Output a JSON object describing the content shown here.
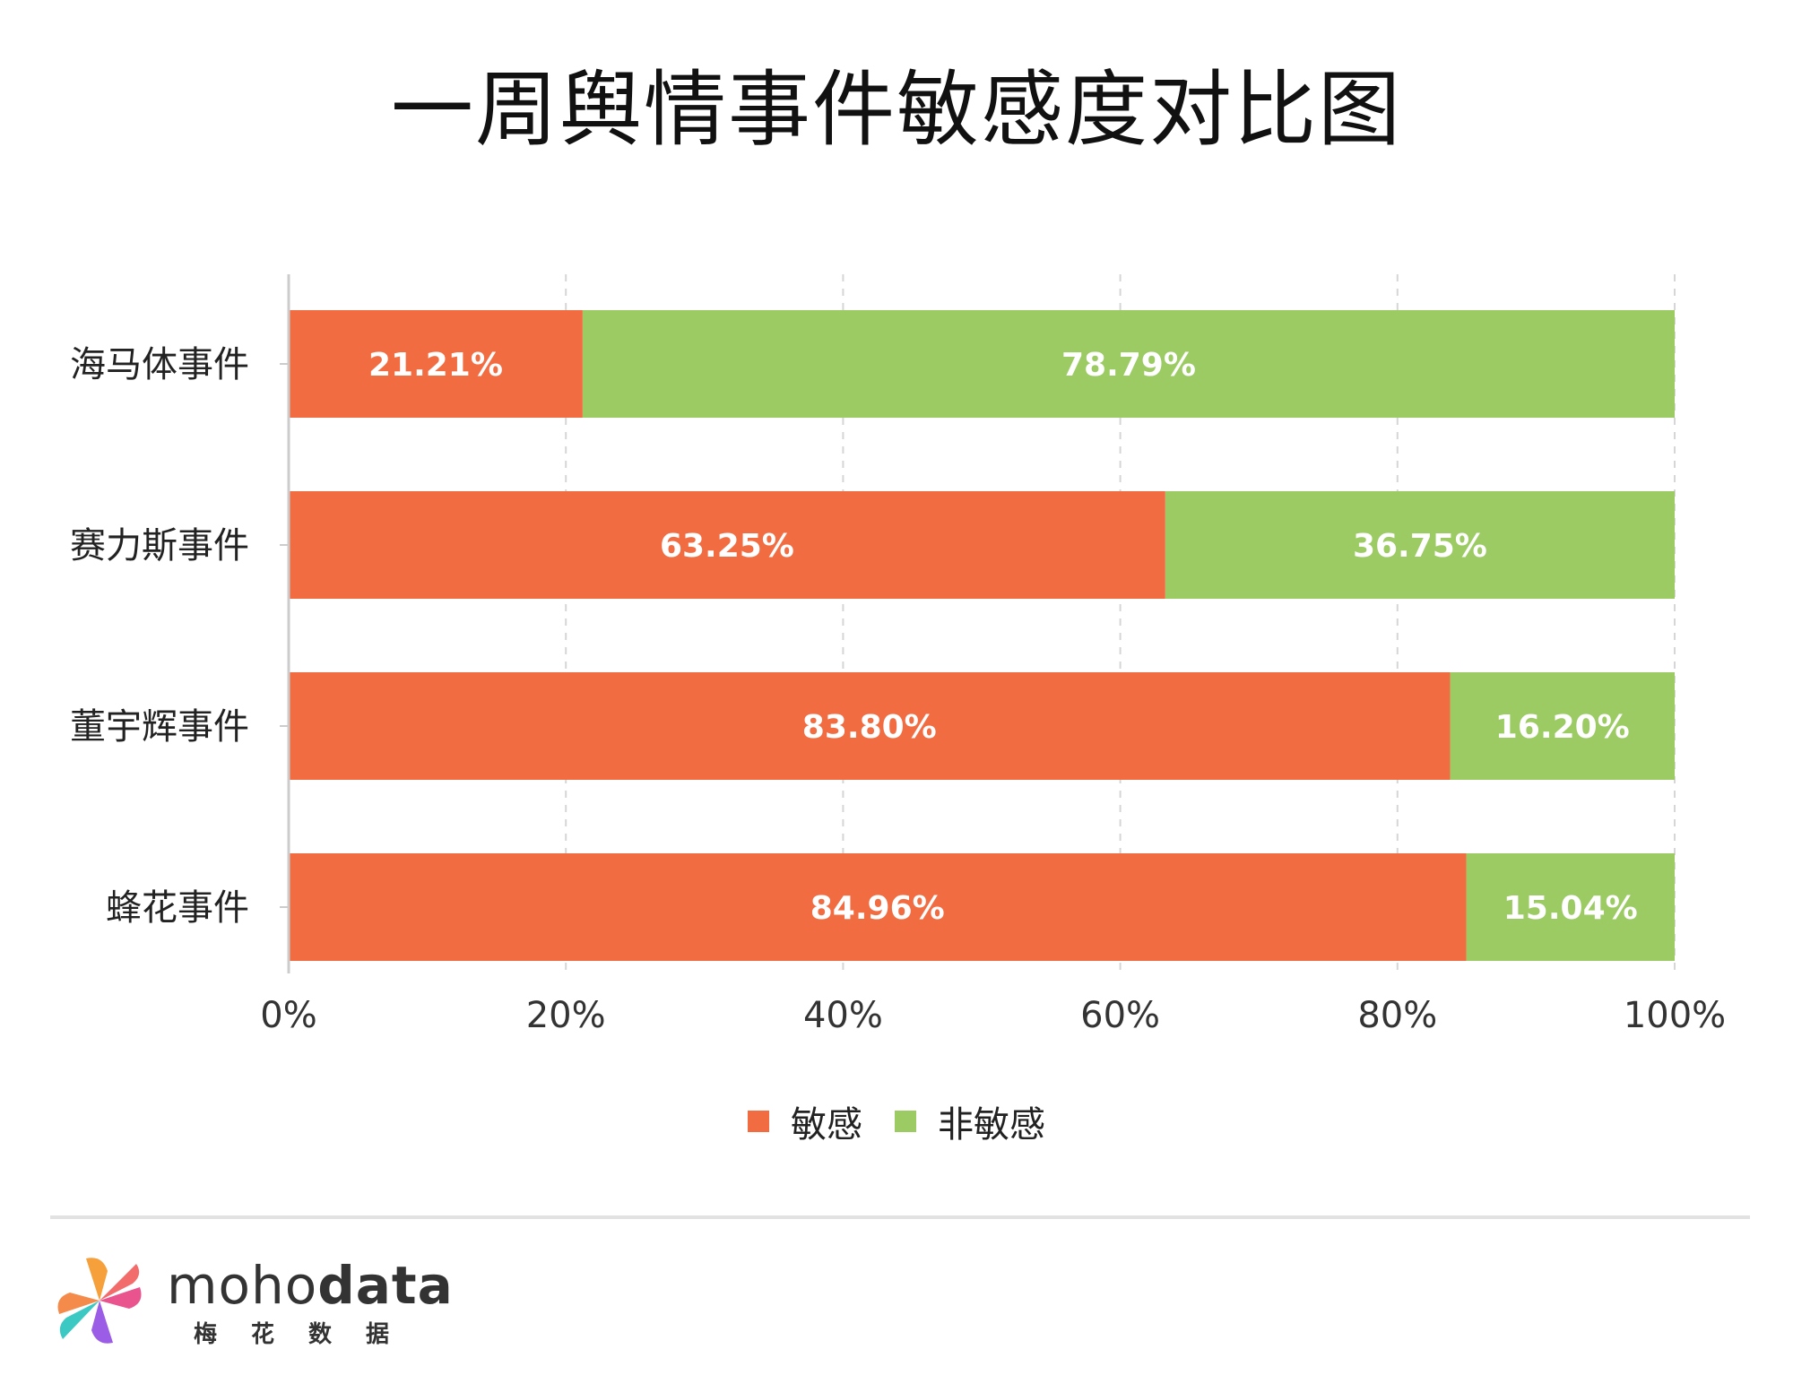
{
  "title": "一周舆情事件敏感度对比图",
  "chart_data": {
    "type": "bar",
    "orientation": "horizontal",
    "stacked": true,
    "title": "一周舆情事件敏感度对比图",
    "categories": [
      "海马体事件",
      "赛力斯事件",
      "董宇辉事件",
      "蜂花事件"
    ],
    "series": [
      {
        "name": "敏感",
        "color": "#F26C42",
        "values": [
          21.21,
          63.25,
          83.8,
          84.96
        ],
        "labels": [
          "21.21%",
          "63.25%",
          "83.80%",
          "84.96%"
        ]
      },
      {
        "name": "非敏感",
        "color": "#9CCB64",
        "values": [
          78.79,
          36.75,
          16.2,
          15.04
        ],
        "labels": [
          "78.79%",
          "36.75%",
          "16.20%",
          "15.04%"
        ]
      }
    ],
    "xlim": [
      0,
      100
    ],
    "xticks": [
      "0%",
      "20%",
      "40%",
      "60%",
      "80%",
      "100%"
    ],
    "grid": "vertical dashed",
    "legend_position": "bottom"
  },
  "legend": {
    "sensitive": "敏感",
    "non_sensitive": "非敏感",
    "sensitive_color": "#F26C42",
    "non_sensitive_color": "#9CCB64"
  },
  "brand": {
    "name_light": "moho",
    "name_bold": "data",
    "subtitle": "梅花数据"
  }
}
